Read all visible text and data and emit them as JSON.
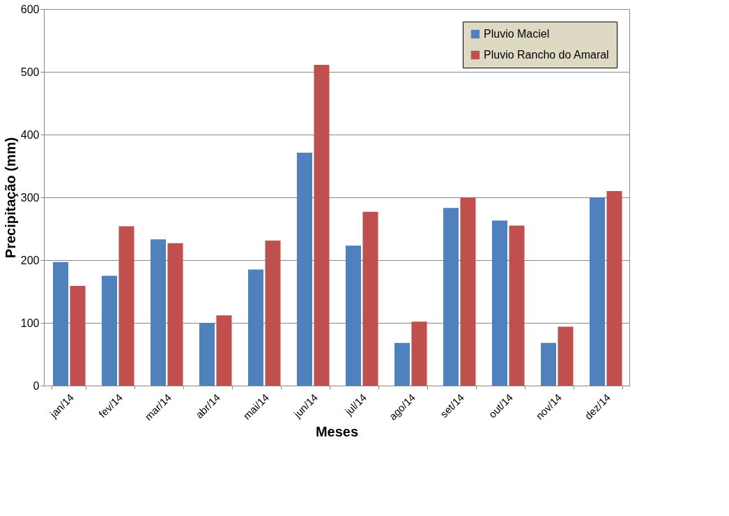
{
  "chart_data": {
    "type": "bar",
    "xlabel": "Meses",
    "ylabel": "Precipitação (mm)",
    "categories": [
      "jan/14",
      "fev/14",
      "mar/14",
      "abr/14",
      "mai/14",
      "jun/14",
      "jul/14",
      "ago/14",
      "set/14",
      "out/14",
      "nov/14",
      "dez/14"
    ],
    "series": [
      {
        "name": "Pluvio Maciel",
        "color": "#4f81bd",
        "values": [
          197,
          175,
          233,
          100,
          185,
          371,
          223,
          68,
          283,
          263,
          68,
          300
        ]
      },
      {
        "name": "Pluvio Rancho do Amaral",
        "color": "#c0504d",
        "values": [
          159,
          254,
          227,
          112,
          231,
          511,
          277,
          102,
          300,
          255,
          94,
          310
        ]
      }
    ],
    "ylim": [
      0,
      600
    ],
    "yticks": [
      0,
      100,
      200,
      300,
      400,
      500,
      600
    ],
    "grid": "y",
    "legend": "top right"
  }
}
